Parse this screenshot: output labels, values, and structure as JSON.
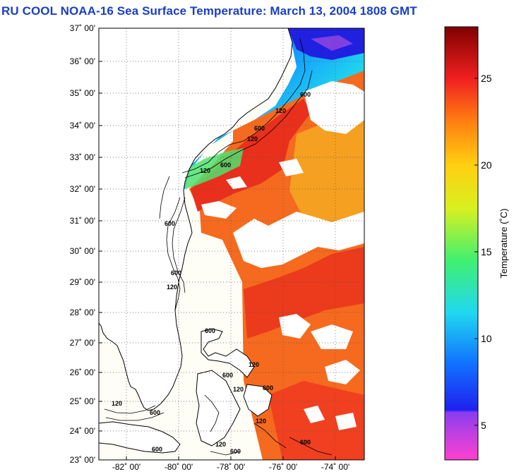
{
  "title": "RU COOL  NOAA-16  Sea Surface Temperature:  March 13, 2004 1808 GMT",
  "map": {
    "lat_labels": [
      "37˚ 00'",
      "36˚ 00'",
      "35˚ 00'",
      "34˚ 00'",
      "33˚ 00'",
      "32˚ 00'",
      "31˚ 00'",
      "30˚ 00'",
      "29˚ 00'",
      "28˚ 00'",
      "27˚ 00'",
      "26˚ 00'",
      "25˚ 00'",
      "24˚ 00'",
      "23˚ 00'"
    ],
    "lon_labels": [
      "-82˚ 00'",
      "-80˚ 00'",
      "-78˚ 00'",
      "-76˚ 00'",
      "-74˚ 00'"
    ],
    "contour_labels": [
      "600",
      "120",
      "600",
      "120",
      "600",
      "120",
      "600",
      "120",
      "600",
      "120",
      "600",
      "600",
      "600",
      "120",
      "600",
      "120",
      "600",
      "120",
      "600",
      "120",
      "600"
    ]
  },
  "colorbar": {
    "tick_labels": [
      "25",
      "20",
      "15",
      "10",
      "5"
    ],
    "axis_label": "Temperature (˚C)"
  }
}
